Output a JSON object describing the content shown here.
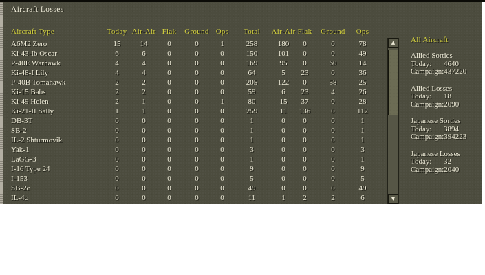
{
  "window": {
    "title": "Aircraft Losses"
  },
  "table": {
    "headers": [
      "Aircraft Type",
      "Today",
      "Air-Air",
      "Flak",
      "Ground",
      "Ops",
      "Total",
      "Air-Air",
      "Flak",
      "Ground",
      "Ops"
    ],
    "rows": [
      {
        "name": "A6M2 Zero",
        "values": [
          15,
          14,
          0,
          0,
          1,
          258,
          180,
          0,
          0,
          78
        ]
      },
      {
        "name": "Ki-43-Ib Oscar",
        "values": [
          6,
          6,
          0,
          0,
          0,
          150,
          101,
          0,
          0,
          49
        ]
      },
      {
        "name": "P-40E Warhawk",
        "values": [
          4,
          4,
          0,
          0,
          0,
          169,
          95,
          0,
          60,
          14
        ]
      },
      {
        "name": "Ki-48-I Lily",
        "values": [
          4,
          4,
          0,
          0,
          0,
          64,
          5,
          23,
          0,
          36
        ]
      },
      {
        "name": "P-40B Tomahawk",
        "values": [
          2,
          2,
          0,
          0,
          0,
          205,
          122,
          0,
          58,
          25
        ]
      },
      {
        "name": "Ki-15 Babs",
        "values": [
          2,
          2,
          0,
          0,
          0,
          59,
          6,
          23,
          4,
          26
        ]
      },
      {
        "name": "Ki-49 Helen",
        "values": [
          2,
          1,
          0,
          0,
          1,
          80,
          15,
          37,
          0,
          28
        ]
      },
      {
        "name": "Ki-21-II Sally",
        "values": [
          1,
          1,
          0,
          0,
          0,
          259,
          11,
          136,
          0,
          112
        ]
      },
      {
        "name": "DB-3T",
        "values": [
          0,
          0,
          0,
          0,
          0,
          1,
          0,
          0,
          0,
          1
        ]
      },
      {
        "name": "SB-2",
        "values": [
          0,
          0,
          0,
          0,
          0,
          1,
          0,
          0,
          0,
          1
        ]
      },
      {
        "name": "IL-2 Shturmovik",
        "values": [
          0,
          0,
          0,
          0,
          0,
          1,
          0,
          0,
          0,
          1
        ]
      },
      {
        "name": "Yak-1",
        "values": [
          0,
          0,
          0,
          0,
          0,
          3,
          0,
          0,
          0,
          3
        ]
      },
      {
        "name": "LaGG-3",
        "values": [
          0,
          0,
          0,
          0,
          0,
          1,
          0,
          0,
          0,
          1
        ]
      },
      {
        "name": "I-16 Type 24",
        "values": [
          0,
          0,
          0,
          0,
          0,
          9,
          0,
          0,
          0,
          9
        ]
      },
      {
        "name": "I-153",
        "values": [
          0,
          0,
          0,
          0,
          0,
          5,
          0,
          0,
          0,
          5
        ]
      },
      {
        "name": "SB-2c",
        "values": [
          0,
          0,
          0,
          0,
          0,
          49,
          0,
          0,
          0,
          49
        ]
      },
      {
        "name": "IL-4c",
        "values": [
          0,
          0,
          0,
          0,
          0,
          11,
          1,
          2,
          2,
          6
        ]
      }
    ]
  },
  "sidebar": {
    "title": "All Aircraft",
    "stats": [
      {
        "label": "Allied Sorties",
        "today_label": "Today:",
        "today": "4640",
        "campaign_label": "Campaign:",
        "campaign": "437220"
      },
      {
        "label": "Allied Losses",
        "today_label": "Today:",
        "today": "18",
        "campaign_label": "Campaign:",
        "campaign": "2090"
      },
      {
        "label": "Japanese Sorties",
        "today_label": "Today:",
        "today": "3894",
        "campaign_label": "Campaign:",
        "campaign": "394223"
      },
      {
        "label": "Japanese Losses",
        "today_label": "Today:",
        "today": "32",
        "campaign_label": "Campaign:",
        "campaign": "2040"
      }
    ]
  },
  "scrollbar": {
    "up_icon": "▲",
    "down_icon": "▼"
  },
  "colors": {
    "background_olive": "#4c4c3e",
    "accent_yellow": "#d2cf3e",
    "text_cream": "#ece9d6"
  }
}
